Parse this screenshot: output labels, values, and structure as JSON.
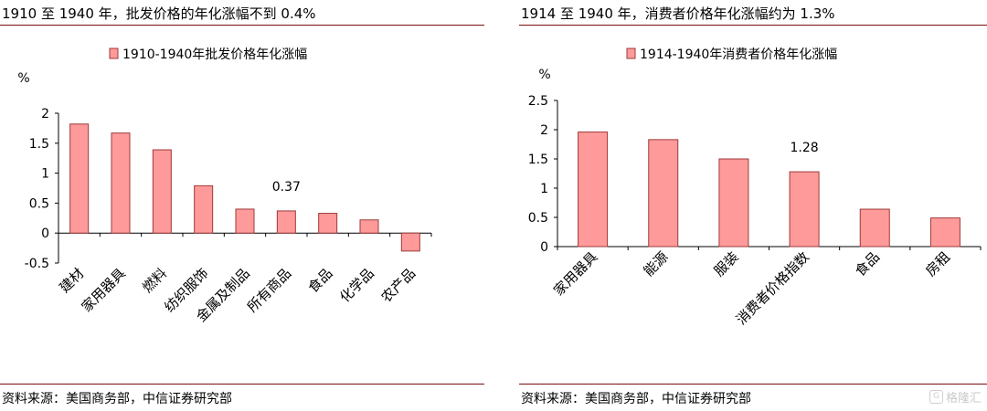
{
  "left": {
    "title": "1910 至 1940 年，批发价格的年化涨幅不到 0.4%",
    "source": "资料来源：美国商务部，中信证券研究部"
  },
  "right": {
    "title": "1914 至 1940 年，消费者价格年化涨幅约为 1.3%",
    "source": "资料来源：美国商务部，中信证券研究部"
  },
  "watermark": {
    "icon": "watermark-logo-icon",
    "text": "格隆汇"
  },
  "colors": {
    "bar_fill": "#ff9a9a",
    "bar_stroke": "#9e3a3a",
    "rule": "#7a0f0f",
    "axis": "#000000"
  },
  "chart_data": [
    {
      "type": "bar",
      "legend": "1910-1940年批发价格年化涨幅",
      "ylabel": "%",
      "ylim": [
        -0.5,
        2
      ],
      "yticks": [
        -0.5,
        0,
        0.5,
        1,
        1.5,
        2
      ],
      "ytick_labels": [
        "-0.5",
        "0",
        "0.5",
        "1",
        "1.5",
        "2"
      ],
      "categories": [
        "建材",
        "家用器具",
        "燃料",
        "纺织服饰",
        "金属及制品",
        "所有商品",
        "食品",
        "化学品",
        "农产品"
      ],
      "values": [
        1.82,
        1.67,
        1.39,
        0.79,
        0.4,
        0.37,
        0.33,
        0.22,
        -0.3
      ],
      "annotations": [
        {
          "index": 5,
          "text": "0.37"
        }
      ]
    },
    {
      "type": "bar",
      "legend": "1914-1940年消费者价格年化涨幅",
      "ylabel": "%",
      "ylim": [
        0,
        2.5
      ],
      "yticks": [
        0,
        0.5,
        1,
        1.5,
        2,
        2.5
      ],
      "ytick_labels": [
        "0",
        "0.5",
        "1",
        "1.5",
        "2",
        "2.5"
      ],
      "categories": [
        "家用器具",
        "能源",
        "服装",
        "消费者价格指数",
        "食品",
        "房租"
      ],
      "values": [
        1.96,
        1.83,
        1.5,
        1.28,
        0.64,
        0.49
      ],
      "annotations": [
        {
          "index": 3,
          "text": "1.28"
        }
      ]
    }
  ]
}
